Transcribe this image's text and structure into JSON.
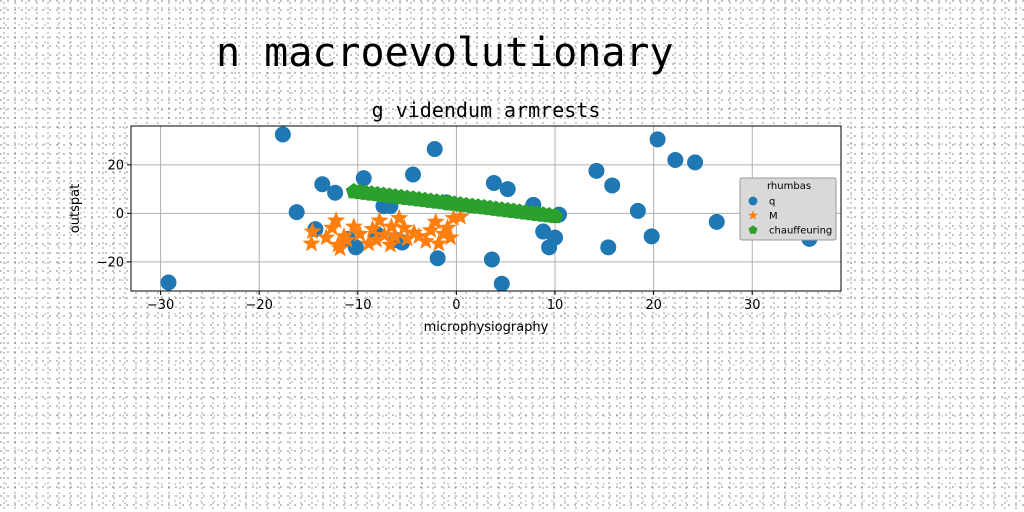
{
  "figure": {
    "suptitle": "n macroevolutionary"
  },
  "chart_data": {
    "type": "scatter",
    "title": "g videndum armrests",
    "xlabel": "microphysiography",
    "ylabel": "outspat",
    "xlim": [
      -33,
      39
    ],
    "ylim": [
      -32,
      36
    ],
    "xticks": [
      -30,
      -20,
      -10,
      0,
      10,
      20,
      30
    ],
    "yticks": [
      -20,
      0,
      20
    ],
    "grid": true,
    "legend": {
      "title": "rhumbas",
      "placement": "right"
    },
    "series": [
      {
        "name": "q",
        "marker": "circle",
        "color": "#1f77b4",
        "points": [
          [
            -29.2,
            -28.5
          ],
          [
            -17.6,
            32.5
          ],
          [
            -16.2,
            0.5
          ],
          [
            -14.3,
            -6.5
          ],
          [
            -13.6,
            12
          ],
          [
            -12.3,
            8.5
          ],
          [
            -11.0,
            -10.5
          ],
          [
            -10.2,
            -14
          ],
          [
            -9.4,
            14.5
          ],
          [
            -8.1,
            -8.5
          ],
          [
            -7.4,
            3
          ],
          [
            -6.7,
            3
          ],
          [
            -6.1,
            -11
          ],
          [
            -5.5,
            -12
          ],
          [
            -4.4,
            16
          ],
          [
            -2.2,
            26.5
          ],
          [
            -1.9,
            -18.5
          ],
          [
            -1.0,
            4.5
          ],
          [
            3.6,
            -19
          ],
          [
            3.8,
            12.5
          ],
          [
            4.6,
            -29
          ],
          [
            5.2,
            10
          ],
          [
            7.8,
            3.5
          ],
          [
            8.8,
            -7.5
          ],
          [
            9.4,
            -14
          ],
          [
            10.0,
            -10
          ],
          [
            10.4,
            -0.5
          ],
          [
            14.2,
            17.5
          ],
          [
            15.4,
            -14
          ],
          [
            15.8,
            11.5
          ],
          [
            18.4,
            1
          ],
          [
            19.8,
            -9.5
          ],
          [
            20.4,
            30.5
          ],
          [
            22.2,
            22
          ],
          [
            24.2,
            21
          ],
          [
            26.4,
            -3.5
          ],
          [
            35.8,
            -10.5
          ]
        ]
      },
      {
        "name": "M",
        "marker": "star",
        "color": "#ff7f0e",
        "points": [
          [
            -14.7,
            -12.5
          ],
          [
            -14.6,
            -7.5
          ],
          [
            -13.2,
            -10
          ],
          [
            -12.6,
            -6
          ],
          [
            -12.2,
            -3
          ],
          [
            -12.0,
            -13
          ],
          [
            -11.8,
            -14.5
          ],
          [
            -11.4,
            -9.5
          ],
          [
            -11.1,
            -11
          ],
          [
            -10.4,
            -5.5
          ],
          [
            -9.8,
            -8.5
          ],
          [
            -8.9,
            -12.5
          ],
          [
            -8.5,
            -6.5
          ],
          [
            -8.1,
            -11
          ],
          [
            -7.8,
            -3
          ],
          [
            -7.3,
            -9
          ],
          [
            -6.7,
            -13
          ],
          [
            -6.6,
            -5.5
          ],
          [
            -6.2,
            -9.5
          ],
          [
            -5.8,
            -2
          ],
          [
            -5.3,
            -6
          ],
          [
            -5.0,
            -10.5
          ],
          [
            -4.3,
            -8
          ],
          [
            -3.8,
            -9.5
          ],
          [
            -3.1,
            -11.5
          ],
          [
            -2.6,
            -7
          ],
          [
            -2.1,
            -3.5
          ],
          [
            -1.8,
            -12.5
          ],
          [
            -1.3,
            -8.5
          ],
          [
            -0.9,
            -6
          ],
          [
            -0.6,
            -10
          ],
          [
            -0.3,
            -2
          ],
          [
            0.4,
            -1.5
          ]
        ]
      },
      {
        "name": "chauffeuring",
        "marker": "pentagon",
        "color": "#2ca02c",
        "points": [
          [
            -10.4,
            9
          ],
          [
            -9.8,
            8.7
          ],
          [
            -9.2,
            8.4
          ],
          [
            -8.6,
            8.1
          ],
          [
            -8.0,
            7.8
          ],
          [
            -7.4,
            7.5
          ],
          [
            -6.8,
            7.2
          ],
          [
            -6.2,
            6.9
          ],
          [
            -5.6,
            6.6
          ],
          [
            -5.0,
            6.3
          ],
          [
            -4.4,
            6.0
          ],
          [
            -3.8,
            5.7
          ],
          [
            -3.2,
            5.4
          ],
          [
            -2.6,
            5.1
          ],
          [
            -2.0,
            4.8
          ],
          [
            -1.4,
            4.5
          ],
          [
            -0.8,
            4.2
          ],
          [
            -0.2,
            3.9
          ],
          [
            0.4,
            3.6
          ],
          [
            1.0,
            3.3
          ],
          [
            1.6,
            3.0
          ],
          [
            2.2,
            2.7
          ],
          [
            2.8,
            2.4
          ],
          [
            3.4,
            2.1
          ],
          [
            4.0,
            1.8
          ],
          [
            4.6,
            1.5
          ],
          [
            5.2,
            1.2
          ],
          [
            5.8,
            0.9
          ],
          [
            6.4,
            0.6
          ],
          [
            7.0,
            0.3
          ],
          [
            7.6,
            0.0
          ],
          [
            8.2,
            -0.3
          ],
          [
            8.8,
            -0.6
          ],
          [
            9.4,
            -0.9
          ],
          [
            10.0,
            -1.2
          ]
        ]
      }
    ]
  }
}
